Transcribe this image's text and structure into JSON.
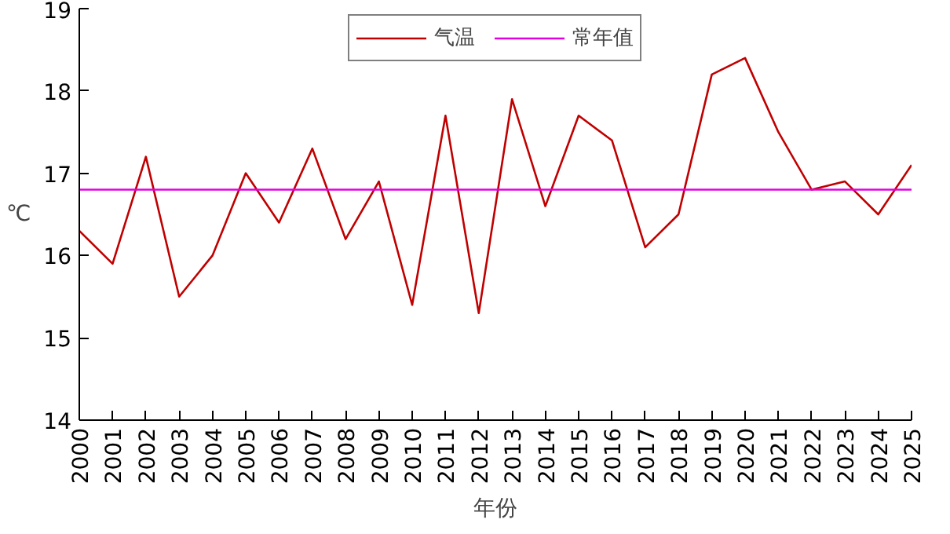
{
  "chart_data": {
    "type": "line",
    "xlabel": "年份",
    "ylabel": "℃",
    "x": [
      2000,
      2001,
      2002,
      2003,
      2004,
      2005,
      2006,
      2007,
      2008,
      2009,
      2010,
      2011,
      2012,
      2013,
      2014,
      2015,
      2016,
      2017,
      2018,
      2019,
      2020,
      2021,
      2022,
      2023,
      2024,
      2025
    ],
    "series": [
      {
        "name": "气温",
        "color": "#c00000",
        "values": [
          16.3,
          15.9,
          17.2,
          15.5,
          16.0,
          17.0,
          16.4,
          17.3,
          16.2,
          16.9,
          15.4,
          17.7,
          15.3,
          17.9,
          16.6,
          17.7,
          17.4,
          16.1,
          16.5,
          18.2,
          18.4,
          17.5,
          16.8,
          16.9,
          16.5,
          17.1
        ]
      }
    ],
    "ref_lines": [
      {
        "axis": "y",
        "value": 16.8,
        "label": "常年值",
        "color": "#e000e0"
      }
    ],
    "xlim": [
      2000,
      2025
    ],
    "xticks": [
      2000,
      2001,
      2002,
      2003,
      2004,
      2005,
      2006,
      2007,
      2008,
      2009,
      2010,
      2011,
      2012,
      2013,
      2014,
      2015,
      2016,
      2017,
      2018,
      2019,
      2020,
      2021,
      2022,
      2023,
      2024,
      2025
    ],
    "ylim": [
      14,
      19
    ],
    "yticks": [
      14,
      15,
      16,
      17,
      18,
      19
    ],
    "grid": false,
    "legend": "top",
    "marker": "none",
    "line_style": "solid"
  }
}
